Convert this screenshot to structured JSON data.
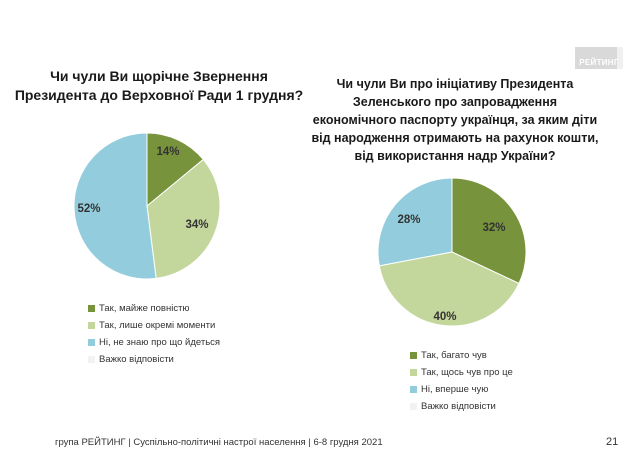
{
  "logo": "РЕЙТИНГ",
  "chart_data": [
    {
      "type": "pie",
      "title": "Чи чули Ви щорічне Звернення Президента до Верховної Ради 1 грудня?",
      "title_lines": [
        "Чи чули Ви щорічне Звернення",
        "Президента до Верховної Ради 1 грудня?"
      ],
      "categories": [
        "Так, майже повністю",
        "Так, лише окремі моменти",
        "Ні, не знаю про що йдеться",
        "Важко відповісти"
      ],
      "values": [
        14,
        34,
        52,
        0
      ],
      "labels": [
        "14%",
        "34%",
        "52%",
        ""
      ],
      "colors": [
        "#77933c",
        "#c3d69b",
        "#93cddd",
        "#f2f2f2"
      ],
      "legend": "bottom"
    },
    {
      "type": "pie",
      "title": "Чи чули Ви про ініціативу Президента Зеленського про запровадження економічного паспорту українця, за яким діти від народження отримають на рахунок кошти, від використання надр України?",
      "title_lines": [
        "Чи чули Ви про ініціативу Президента",
        "Зеленського про запровадження",
        "економічного паспорту українця, за яким діти",
        "від народження отримають на рахунок кошти,",
        "від використання надр України?"
      ],
      "categories": [
        "Так, багато чув",
        "Так, щось чув про це",
        "Ні, вперше чую",
        "Важко відповісти"
      ],
      "values": [
        32,
        40,
        28,
        0
      ],
      "labels": [
        "32%",
        "40%",
        "28%",
        ""
      ],
      "colors": [
        "#77933c",
        "#c3d69b",
        "#93cddd",
        "#f2f2f2"
      ],
      "legend": "bottom"
    }
  ],
  "footer": "група РЕЙТИНГ | Суспільно-політичні настрої населення  | 6-8 грудня 2021",
  "page_number": "21"
}
